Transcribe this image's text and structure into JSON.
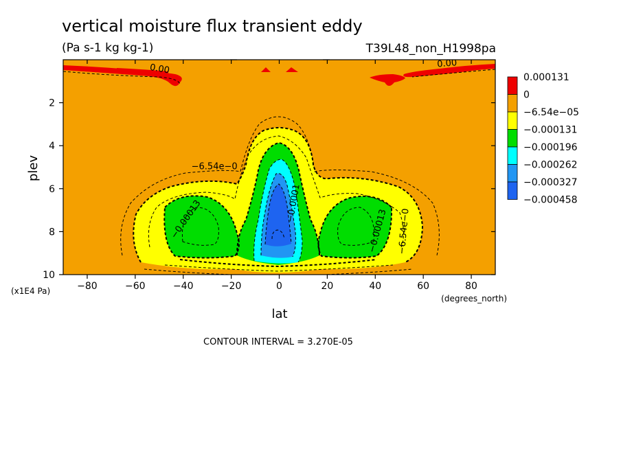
{
  "title": "vertical moisture flux transient eddy",
  "units": "(Pa s-1 kg kg-1)",
  "run_label": "T39L48_non_H1998pa",
  "footer": "CONTOUR INTERVAL = 3.270E-05",
  "chart_data": {
    "type": "contour",
    "xlabel": "lat",
    "x_units": "(degrees_north)",
    "ylabel": "plev",
    "y_units": "(x1E4 Pa)",
    "xlim": [
      -90,
      90
    ],
    "ylim": [
      10,
      0
    ],
    "x_ticks": [
      -80,
      -60,
      -40,
      -20,
      0,
      20,
      40,
      60,
      80
    ],
    "x_tick_labels": [
      "-80",
      "-60",
      "-40",
      "-20",
      "0",
      "20",
      "40",
      "60",
      "80"
    ],
    "y_ticks": [
      2,
      4,
      6,
      8,
      10
    ],
    "y_tick_labels": [
      "2",
      "4",
      "6",
      "8",
      "10"
    ],
    "contour_interval": 3.27e-05,
    "legend": {
      "placement": "right",
      "levels": [
        "0.000131",
        "0",
        "-6.54e-05",
        "-0.000131",
        "-0.000196",
        "-0.000262",
        "-0.000327",
        "-0.000458"
      ],
      "colors": [
        "#ee0000",
        "#f4a000",
        "#ffff00",
        "#00dd00",
        "#00ffff",
        "#2196f3",
        "#1e64f0"
      ]
    },
    "background_color": "#f4a000",
    "contour_labels": [
      {
        "text": "0.00",
        "lon": -50,
        "plev": 0.55,
        "rotate": 10
      },
      {
        "text": "0.00",
        "lon": 70,
        "plev": 0.3,
        "rotate": -5
      },
      {
        "text": "-6.54e-0",
        "lon": -27,
        "plev": 5.1,
        "rotate": 0
      },
      {
        "text": "-0.00013",
        "lon": -38,
        "plev": 7.5,
        "rotate": -55
      },
      {
        "text": "-0.00013",
        "lon": 42,
        "plev": 8.0,
        "rotate": -75
      },
      {
        "text": "-6.54e-0",
        "lon": 53,
        "plev": 8.0,
        "rotate": -85
      },
      {
        "text": "-0.0001",
        "lon": 7,
        "plev": 6.7,
        "rotate": -80
      }
    ],
    "features": [
      {
        "name": "positive-flux-nh-strip",
        "level": "0.000131",
        "lat_range": [
          52,
          90
        ],
        "plev_range": [
          0.2,
          1.0
        ]
      },
      {
        "name": "positive-flux-sh-strip",
        "level": "0.000131",
        "lat_range": [
          -90,
          -40
        ],
        "plev_range": [
          0.2,
          1.4
        ]
      },
      {
        "name": "positive-flux-nh-lobe",
        "level": "0.000131",
        "lat_range": [
          37,
          50
        ],
        "plev_range": [
          0.7,
          1.4
        ]
      },
      {
        "name": "equatorial-minimum",
        "level": "-0.000458",
        "lat_range": [
          -5,
          5
        ],
        "plev_range": [
          6.2,
          9.3
        ]
      },
      {
        "name": "sh-midlatitude-minimum",
        "level": "-0.000131",
        "lat_range": [
          -48,
          -20
        ],
        "plev_range": [
          6.8,
          9.2
        ]
      },
      {
        "name": "nh-midlatitude-minimum",
        "level": "-0.000131",
        "lat_range": [
          20,
          48
        ],
        "plev_range": [
          6.8,
          9.2
        ]
      }
    ]
  }
}
